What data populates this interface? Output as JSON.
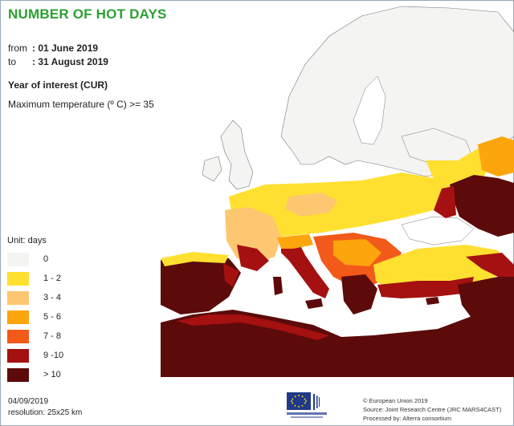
{
  "title": "NUMBER OF HOT DAYS",
  "period": {
    "from_label": "from",
    "from_value": ": 01 June 2019",
    "to_label": "to",
    "to_value": ": 31 August 2019"
  },
  "year_of_interest": "Year of interest (CUR)",
  "parameter": "Maximum temperature (º C) >= 35",
  "legend": {
    "unit": "Unit:  days",
    "classes": [
      {
        "label": "0",
        "color": "#f4f5f2"
      },
      {
        "label": "1 - 2",
        "color": "#ffe030"
      },
      {
        "label": "3 - 4",
        "color": "#fdc670"
      },
      {
        "label": "5 - 6",
        "color": "#fda50c"
      },
      {
        "label": "7 - 8",
        "color": "#f25a1a"
      },
      {
        "label": "9 -10",
        "color": "#a51010"
      },
      {
        "label": "> 10",
        "color": "#5c0a0a"
      }
    ]
  },
  "footer": {
    "date": "04/09/2019",
    "resolution": "resolution:  25x25 km",
    "credit_1": "© European Union 2019",
    "credit_2": "Source: Joint Research Centre (JRC MARS4CAST)",
    "credit_3": "Processed by: Alterra consortium"
  }
}
